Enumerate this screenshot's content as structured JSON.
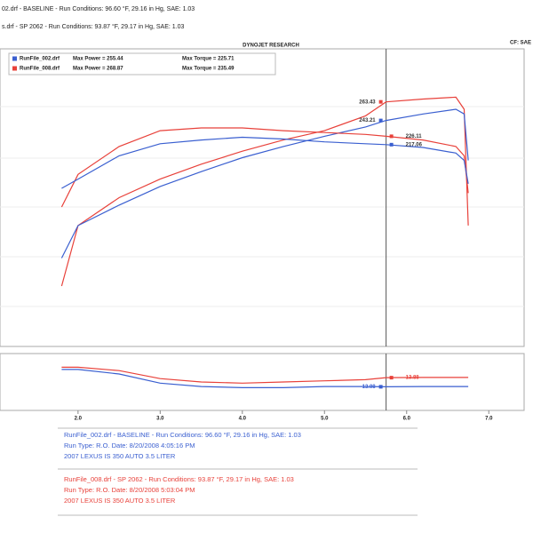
{
  "header": {
    "lines": [
      "02.drf - BASELINE  -  Run Conditions: 96.60 °F, 29.16 in Hg, SAE: 1.03",
      "s.drf - SP 2062  -  Run Conditions: 93.87 °F, 29.17 in Hg, SAE: 1.03"
    ]
  },
  "chart_data": [
    {
      "type": "line",
      "title": "DYNOJET RESEARCH",
      "corner_label": "CF: SAE",
      "legend": [
        {
          "file": "RunFile_002.drf",
          "power": "Max Power = 255.44",
          "torque": "Max Torque = 225.71",
          "color": "#3a5fd0"
        },
        {
          "file": "RunFile_008.drf",
          "power": "Max Power = 268.87",
          "torque": "Max Torque = 235.49",
          "color": "#e8413a"
        }
      ],
      "x": [
        1.8,
        2.0,
        2.5,
        3.0,
        3.5,
        4.0,
        4.5,
        5.0,
        5.5,
        5.75,
        6.2,
        6.6,
        6.7,
        6.75
      ],
      "xlim": [
        1.05,
        7.43
      ],
      "ylim": [
        0,
        320
      ],
      "cursor_x": 5.75,
      "series": [
        {
          "color": "#e8413a",
          "cursor_label": "263.43",
          "values": [
            65,
            130,
            160,
            180,
            196,
            210,
            222,
            232,
            248,
            263,
            266,
            268,
            255,
            130
          ]
        },
        {
          "color": "#3a5fd0",
          "cursor_label": "243.21",
          "values": [
            95,
            130,
            152,
            172,
            188,
            203,
            215,
            226,
            236,
            243,
            250,
            255,
            250,
            200
          ]
        },
        {
          "color": "#e8413a",
          "cursor_label": "226.11",
          "values": [
            150,
            185,
            215,
            232,
            235,
            235,
            232,
            230,
            228,
            226,
            222,
            215,
            205,
            165
          ]
        },
        {
          "color": "#3a5fd0",
          "cursor_label": "217.06",
          "values": [
            170,
            180,
            205,
            218,
            222,
            225,
            223,
            220,
            218,
            217,
            214,
            208,
            200,
            175
          ]
        }
      ]
    },
    {
      "type": "line",
      "x": [
        1.8,
        2.0,
        2.5,
        3.0,
        3.5,
        4.0,
        4.5,
        5.0,
        5.5,
        5.75,
        6.2,
        6.6,
        6.7,
        6.75
      ],
      "xlim": [
        1.05,
        7.43
      ],
      "ylim": [
        11,
        16
      ],
      "cursor_x": 5.75,
      "xticks": [
        {
          "value": 2,
          "label": "2.0"
        },
        {
          "value": 3,
          "label": "3.0"
        },
        {
          "value": 4,
          "label": "4.0"
        },
        {
          "value": 5,
          "label": "5.0"
        },
        {
          "value": 6,
          "label": "6.0"
        },
        {
          "value": 7,
          "label": "7.0"
        }
      ],
      "series": [
        {
          "color": "#3a5fd0",
          "cursor_label": "13.08",
          "values": [
            14.6,
            14.6,
            14.2,
            13.4,
            13.1,
            13.0,
            13.0,
            13.1,
            13.1,
            13.08,
            13.1,
            13.1,
            13.1,
            13.1
          ]
        },
        {
          "color": "#e8413a",
          "cursor_label": "13.88",
          "values": [
            14.8,
            14.8,
            14.5,
            13.8,
            13.5,
            13.4,
            13.5,
            13.6,
            13.7,
            13.88,
            13.9,
            13.9,
            13.9,
            13.9
          ]
        }
      ]
    }
  ],
  "footer": {
    "runs": [
      {
        "color": "#3a5fd0",
        "lines": [
          "RunFile_002.drf - BASELINE  -  Run Conditions: 96.60 °F, 29.16 in Hg, SAE: 1.03",
          "Run Type: R.O. Date: 8/20/2008 4:05:16 PM",
          "2007 LEXUS IS 350 AUTO 3.5 LITER"
        ]
      },
      {
        "color": "#e8413a",
        "lines": [
          "RunFile_008.drf - SP 2062  -  Run Conditions: 93.87 °F, 29.17 in Hg, SAE: 1.03",
          "Run Type: R.O. Date: 8/20/2008 5:03:04 PM",
          "2007 LEXUS IS 350 AUTO 3.5 LITER"
        ]
      }
    ]
  }
}
